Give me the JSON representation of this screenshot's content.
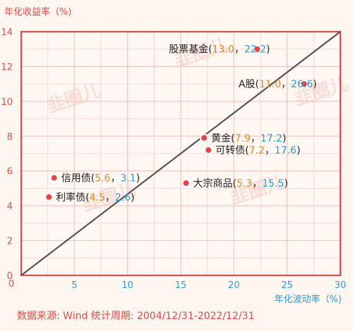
{
  "chart_data": {
    "type": "scatter",
    "title": "",
    "ylabel": "年化收益率（%)",
    "xlabel": "年化波动率（%)",
    "xlim": [
      0,
      30
    ],
    "ylim": [
      0,
      14
    ],
    "xticks": [
      0,
      5,
      10,
      15,
      20,
      25,
      30
    ],
    "yticks": [
      0,
      2,
      4,
      6,
      8,
      10,
      12,
      14
    ],
    "grid": true,
    "diagonal_line": true,
    "points": [
      {
        "name": "股票基金",
        "x": 22.2,
        "y": 13.0,
        "label_side": "left"
      },
      {
        "name": "A股",
        "x": 26.6,
        "y": 11.0,
        "label_side": "left"
      },
      {
        "name": "黄金",
        "x": 17.2,
        "y": 7.9,
        "label_side": "right"
      },
      {
        "name": "可转债",
        "x": 17.6,
        "y": 7.2,
        "label_side": "right"
      },
      {
        "name": "信用债",
        "x": 3.1,
        "y": 5.6,
        "label_side": "right"
      },
      {
        "name": "利率债",
        "x": 2.6,
        "y": 4.5,
        "label_side": "right"
      },
      {
        "name": "大宗商品",
        "x": 15.5,
        "y": 5.3,
        "label_side": "right"
      }
    ]
  },
  "watermark": "韭圈儿",
  "source_text": "数据来源: Wind 统计周期: 2004/12/31-2022/12/31",
  "colors": {
    "frame": "#e24d48",
    "grid": "#f6c3c0",
    "point": "#e8424a",
    "y_value": "#e08a2e",
    "x_value": "#2b9bd8",
    "background": "#fff6ef",
    "diagonal": "#555555"
  }
}
